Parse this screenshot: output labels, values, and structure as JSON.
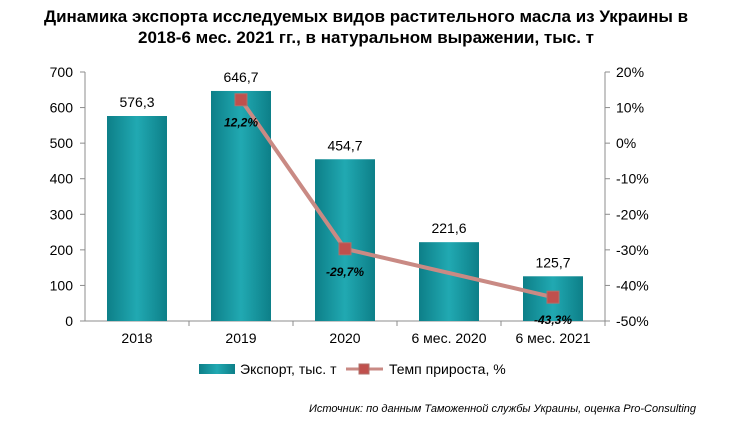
{
  "chart_title_line1": "Динамика экспорта исследуемых видов растительного масла из Украины в",
  "chart_title_line2": "2018-6 мес. 2021 гг., в натуральном выражении, тыс. т",
  "source": "Источник: по данным Таможенной службы Украины, оценка Pro-Consulting",
  "chart_data": {
    "type": "bar",
    "categories": [
      "2018",
      "2019",
      "2020",
      "6 мес. 2020",
      "6 мес. 2021"
    ],
    "series": [
      {
        "name": "Экспорт, тыс. т",
        "type": "bar",
        "axis": "left",
        "values": [
          576.3,
          646.7,
          454.7,
          221.6,
          125.7
        ],
        "labels": [
          "576,3",
          "646,7",
          "454,7",
          "221,6",
          "125,7"
        ],
        "color": "#1a9aa3"
      },
      {
        "name": "Темп прироста, %",
        "type": "line",
        "axis": "right",
        "values": [
          null,
          12.2,
          -29.7,
          null,
          -43.3
        ],
        "labels": [
          "",
          "12,2%",
          "-29,7%",
          "",
          "-43,3%"
        ],
        "color": "#c98a84"
      }
    ],
    "y_left": {
      "range": [
        0,
        700
      ],
      "ticks": [
        "0",
        "100",
        "200",
        "300",
        "400",
        "500",
        "600",
        "700"
      ]
    },
    "y_right": {
      "range": [
        -50,
        20
      ],
      "ticks": [
        "-50%",
        "-40%",
        "-30%",
        "-20%",
        "-10%",
        "0%",
        "10%",
        "20%"
      ]
    },
    "legend_position": "bottom",
    "grid": false
  }
}
